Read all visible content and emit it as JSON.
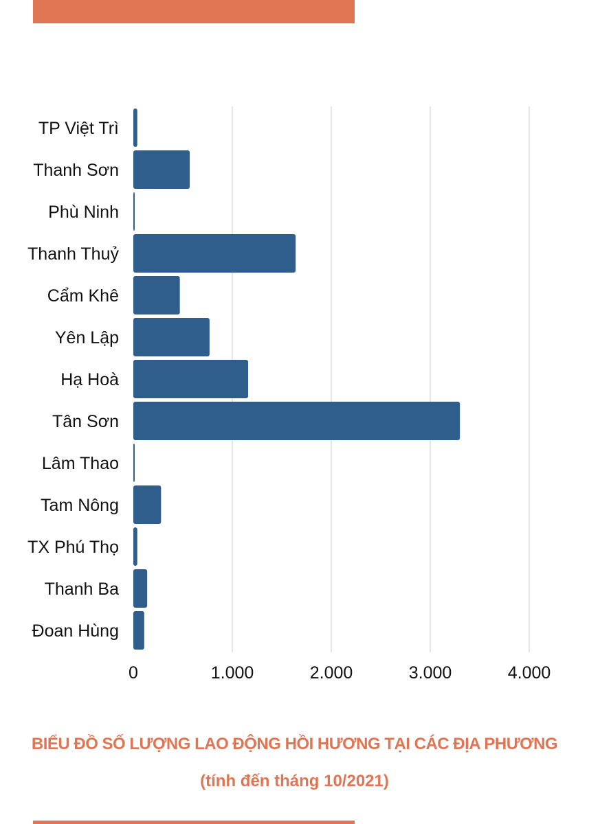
{
  "colors": {
    "accent": "#e07553",
    "bar": "#2f5d8c",
    "grid": "#d6d6d6"
  },
  "caption": {
    "title": "BIỂU ĐỒ SỐ LƯỢNG LAO ĐỘNG HỒI HƯƠNG TẠI CÁC ĐỊA PHƯƠNG",
    "subtitle": "(tính đến tháng 10/2021)"
  },
  "chart_data": {
    "type": "bar",
    "orientation": "horizontal",
    "categories": [
      "TP Việt Trì",
      "Thanh Sơn",
      "Phù Ninh",
      "Thanh Thuỷ",
      "Cẩm Khê",
      "Yên Lập",
      "Hạ Hoà",
      "Tân Sơn",
      "Lâm Thao",
      "Tam Nông",
      "TX Phú Thọ",
      "Thanh Ba",
      "Đoan Hùng"
    ],
    "values": [
      40,
      570,
      10,
      1640,
      470,
      770,
      1160,
      3300,
      10,
      280,
      40,
      140,
      110
    ],
    "xlim": [
      0,
      4000
    ],
    "ticks": [
      0,
      1000,
      2000,
      3000,
      4000
    ],
    "tick_labels": [
      "0",
      "1.000",
      "2.000",
      "3.000",
      "4.000"
    ],
    "grid": true
  }
}
